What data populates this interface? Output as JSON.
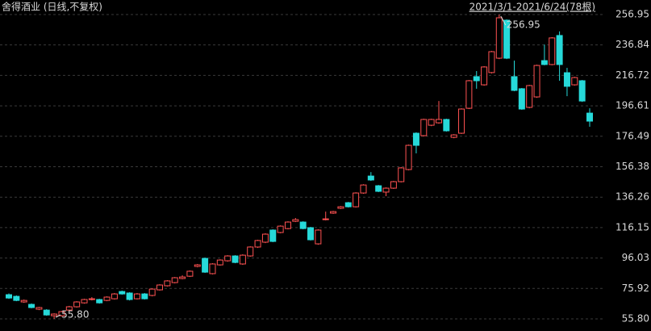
{
  "chart_data": {
    "type": "candlestick",
    "title": "舍得酒业 (日线,不复权)",
    "subtitle": "2021/3/1-2021/6/24(78根)",
    "up_color": "#ff5252",
    "down_color": "#26d9d9",
    "ylim": [
      47.8,
      266.55
    ],
    "yticks": [
      {
        "value": 55.8,
        "label": "55.80"
      },
      75.92,
      96.03,
      116.15,
      136.26,
      156.38,
      176.49,
      196.61,
      216.72,
      236.84,
      256.95
    ],
    "grid": true,
    "open": [
      71.8,
      70.7,
      67.0,
      65.4,
      62.2,
      61.6,
      57.9,
      57.9,
      61.6,
      63.8,
      66.4,
      68.6,
      68.6,
      68.0,
      69.1,
      73.9,
      72.9,
      69.1,
      72.3,
      71.3,
      75.0,
      77.7,
      79.8,
      82.5,
      84.0,
      90.5,
      95.8,
      85.7,
      91.5,
      94.2,
      97.4,
      92.1,
      97.4,
      103.3,
      106.5,
      114.5,
      112.9,
      115.5,
      120.3,
      119.8,
      116.1,
      105.4,
      121.4,
      125.7,
      128.9,
      132.6,
      129.9,
      139.0,
      150.2,
      143.8,
      139.6,
      142.2,
      146.5,
      154.5,
      178.5,
      176.9,
      183.8,
      185.4,
      187.6,
      175.8,
      178.5,
      195.0,
      215.9,
      210.5,
      218.6,
      228.1,
      253.2,
      215.9,
      207.9,
      195.6,
      202.5,
      226.5,
      223.9,
      243.1,
      218.5,
      210.5,
      213.2,
      191.8
    ],
    "high": [
      72.6,
      71.3,
      68.6,
      66.0,
      63.8,
      62.2,
      59.5,
      61.1,
      64.4,
      67.5,
      69.1,
      70.2,
      69.1,
      70.7,
      72.9,
      74.5,
      73.4,
      72.9,
      72.9,
      76.1,
      78.7,
      81.4,
      83.5,
      84.6,
      87.8,
      92.1,
      96.3,
      92.6,
      95.2,
      97.9,
      97.9,
      98.5,
      103.8,
      108.1,
      112.4,
      115.0,
      117.6,
      120.3,
      122.5,
      120.3,
      116.6,
      115.0,
      126.7,
      127.2,
      130.4,
      133.1,
      139.5,
      144.8,
      152.8,
      144.3,
      142.7,
      147.0,
      156.1,
      171.0,
      179.1,
      188.1,
      188.1,
      199.8,
      188.1,
      177.9,
      195.0,
      213.7,
      219.6,
      222.8,
      232.9,
      256.95,
      253.7,
      226.5,
      208.4,
      210.5,
      223.8,
      237.1,
      242.0,
      245.8,
      221.7,
      215.8,
      213.7,
      195.0
    ],
    "low": [
      69.0,
      67.5,
      66.4,
      62.8,
      61.6,
      57.9,
      55.8,
      57.4,
      61.1,
      63.3,
      65.9,
      68.0,
      65.9,
      67.5,
      68.6,
      71.8,
      68.0,
      68.6,
      68.6,
      70.7,
      74.5,
      77.2,
      79.3,
      82.0,
      83.5,
      89.9,
      86.2,
      85.2,
      91.0,
      93.6,
      92.6,
      91.5,
      96.9,
      102.7,
      105.9,
      106.5,
      112.4,
      115.0,
      119.8,
      115.0,
      107.6,
      104.8,
      120.9,
      125.2,
      128.4,
      129.4,
      129.4,
      138.5,
      147.0,
      139.6,
      136.9,
      141.7,
      146.0,
      154.0,
      165.2,
      176.4,
      183.2,
      184.8,
      179.6,
      175.2,
      178.0,
      194.5,
      207.9,
      209.9,
      218.0,
      227.5,
      227.5,
      206.3,
      194.0,
      195.0,
      201.9,
      223.4,
      223.4,
      213.2,
      203.0,
      210.0,
      199.2,
      182.8
    ],
    "close": [
      69.6,
      68.0,
      68.0,
      63.3,
      63.3,
      58.4,
      59.0,
      60.6,
      63.8,
      67.0,
      68.6,
      69.1,
      66.4,
      70.2,
      72.3,
      72.3,
      68.6,
      72.3,
      69.1,
      75.5,
      78.2,
      80.9,
      83.0,
      83.5,
      87.3,
      91.5,
      86.7,
      92.1,
      94.7,
      97.4,
      93.1,
      97.9,
      103.3,
      107.6,
      111.8,
      107.0,
      117.1,
      119.8,
      121.4,
      115.5,
      108.1,
      114.5,
      121.9,
      126.7,
      129.9,
      129.9,
      139.0,
      144.3,
      147.6,
      140.1,
      142.2,
      146.5,
      155.6,
      170.5,
      170.5,
      187.6,
      187.6,
      187.6,
      180.1,
      177.4,
      194.5,
      213.2,
      213.2,
      222.3,
      232.4,
      254.8,
      228.1,
      206.8,
      194.5,
      210.0,
      223.3,
      223.9,
      241.5,
      223.9,
      209.5,
      215.3,
      199.8,
      186.5
    ],
    "annotations": [
      {
        "value": 256.95,
        "label": "256.95"
      },
      {
        "value": 55.8,
        "label": "55.80"
      }
    ]
  }
}
